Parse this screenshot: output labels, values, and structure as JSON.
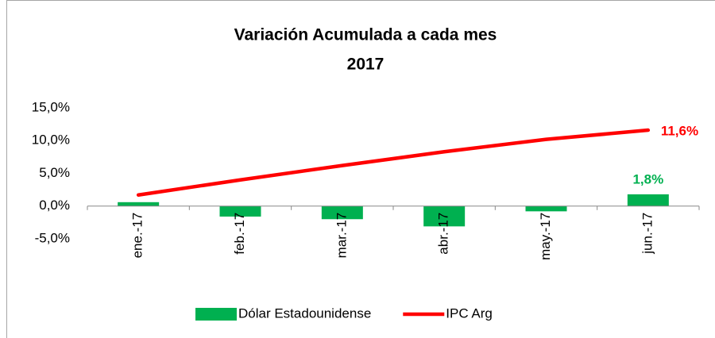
{
  "chart_data": {
    "type": "bar-line",
    "title": "Variación Acumulada a cada mes",
    "subtitle": "2017",
    "categories": [
      "ene.-17",
      "feb.-17",
      "mar.-17",
      "abr.-17",
      "may.-17",
      "jun.-17"
    ],
    "series": [
      {
        "name": "Dólar Estadounidense",
        "type": "bar",
        "color": "#00b050",
        "values": [
          0.6,
          -1.6,
          -2.0,
          -3.1,
          -0.8,
          1.8
        ],
        "value_labels": [
          null,
          null,
          null,
          null,
          null,
          "1,8%"
        ]
      },
      {
        "name": "IPC Arg",
        "type": "line",
        "color": "#ff0000",
        "values": [
          1.7,
          4.0,
          6.2,
          8.3,
          10.2,
          11.6
        ],
        "value_labels": [
          null,
          null,
          null,
          null,
          null,
          "11,6%"
        ]
      }
    ],
    "ylim": [
      -5,
      15
    ],
    "yticks": [
      {
        "value": -5,
        "label": "-5,0%"
      },
      {
        "value": 0,
        "label": "0,0%"
      },
      {
        "value": 5,
        "label": "5,0%"
      },
      {
        "value": 10,
        "label": "10,0%"
      },
      {
        "value": 15,
        "label": "15,0%"
      }
    ],
    "grid": false,
    "legend": "bottom"
  }
}
